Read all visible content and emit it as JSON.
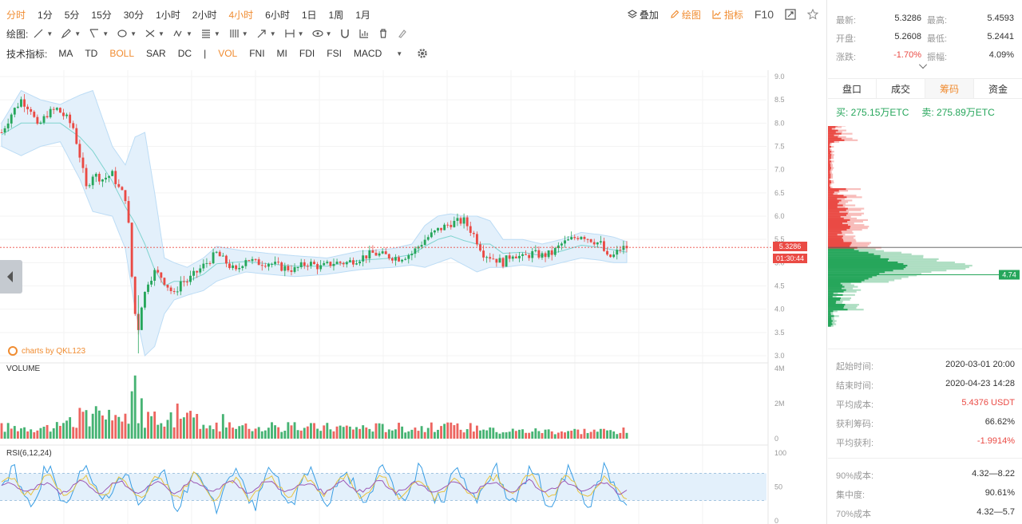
{
  "periods": [
    "分时",
    "1分",
    "5分",
    "15分",
    "30分",
    "1小时",
    "2小时",
    "4小时",
    "6小时",
    "1日",
    "1周",
    "1月"
  ],
  "active_periods": [
    "分时",
    "4小时"
  ],
  "right_tools": {
    "overlay": "叠加",
    "draw": "绘图",
    "indicators": "指标",
    "f10": "F10"
  },
  "draw_label": "绘图:",
  "indicator_label": "技术指标:",
  "indicators": [
    "MA",
    "TD",
    "BOLL",
    "SAR",
    "DC",
    "VOL",
    "FNI",
    "MI",
    "FDI",
    "FSI",
    "MACD"
  ],
  "active_indicators": [
    "BOLL",
    "VOL"
  ],
  "watermark": "charts by QKL123",
  "price_tag": "5.3286",
  "time_tag": "01:30:44",
  "volume_label": "VOLUME",
  "rsi_label": "RSI(6,12,24)",
  "chart_data": [
    {
      "type": "candlestick",
      "title": "",
      "ylim": [
        3.0,
        9.0
      ],
      "yticks": [
        "9.0",
        "8.5",
        "8.0",
        "7.5",
        "7.0",
        "6.5",
        "6.0",
        "5.5",
        "5.0",
        "4.5",
        "4.0",
        "3.5",
        "3.0"
      ],
      "current_price": 5.3286,
      "overlays": [
        "BOLL"
      ],
      "close_path": [
        [
          0,
          7.8
        ],
        [
          3,
          8.2
        ],
        [
          6,
          8.5
        ],
        [
          9,
          8.3
        ],
        [
          11,
          7.9
        ],
        [
          14,
          8.2
        ],
        [
          17,
          8.3
        ],
        [
          20,
          8.1
        ],
        [
          22,
          7.9
        ],
        [
          24,
          7.3
        ],
        [
          26,
          6.6
        ],
        [
          28,
          6.9
        ],
        [
          31,
          6.8
        ],
        [
          34,
          6.9
        ],
        [
          36,
          6.6
        ],
        [
          38,
          6.4
        ],
        [
          39,
          5.8
        ],
        [
          40,
          4.7
        ],
        [
          41,
          3.9
        ],
        [
          42,
          3.6
        ],
        [
          43,
          4.1
        ],
        [
          45,
          4.6
        ],
        [
          47,
          4.8
        ],
        [
          49,
          4.7
        ],
        [
          51,
          4.5
        ],
        [
          53,
          4.3
        ],
        [
          55,
          4.6
        ],
        [
          57,
          4.6
        ],
        [
          60,
          4.8
        ],
        [
          63,
          5.0
        ],
        [
          66,
          5.2
        ],
        [
          69,
          5.0
        ],
        [
          72,
          4.8
        ],
        [
          75,
          5.1
        ],
        [
          78,
          5.0
        ],
        [
          82,
          5.0
        ],
        [
          86,
          4.9
        ],
        [
          90,
          4.85
        ],
        [
          94,
          5.0
        ],
        [
          98,
          4.9
        ],
        [
          102,
          5.0
        ],
        [
          106,
          5.0
        ],
        [
          110,
          5.1
        ],
        [
          114,
          5.2
        ],
        [
          118,
          5.15
        ],
        [
          122,
          5.1
        ],
        [
          126,
          5.2
        ],
        [
          130,
          5.5
        ],
        [
          134,
          5.7
        ],
        [
          138,
          5.85
        ],
        [
          142,
          5.9
        ],
        [
          145,
          5.6
        ],
        [
          148,
          5.2
        ],
        [
          151,
          5.1
        ],
        [
          154,
          5.0
        ],
        [
          157,
          5.2
        ],
        [
          160,
          5.1
        ],
        [
          163,
          5.2
        ],
        [
          166,
          5.15
        ],
        [
          169,
          5.2
        ],
        [
          172,
          5.4
        ],
        [
          175,
          5.5
        ],
        [
          178,
          5.6
        ],
        [
          181,
          5.5
        ],
        [
          184,
          5.4
        ],
        [
          186,
          5.1
        ],
        [
          188,
          5.15
        ],
        [
          190,
          5.3
        ],
        [
          192,
          5.3286
        ]
      ],
      "boll_upper": [
        [
          0,
          8.0
        ],
        [
          6,
          8.7
        ],
        [
          12,
          8.5
        ],
        [
          18,
          8.4
        ],
        [
          24,
          8.6
        ],
        [
          28,
          8.7
        ],
        [
          34,
          7.5
        ],
        [
          38,
          7.1
        ],
        [
          41,
          7.7
        ],
        [
          44,
          7.8
        ],
        [
          47,
          6.5
        ],
        [
          50,
          5.1
        ],
        [
          53,
          5.0
        ],
        [
          57,
          4.9
        ],
        [
          62,
          5.1
        ],
        [
          66,
          5.35
        ],
        [
          70,
          5.3
        ],
        [
          75,
          5.25
        ],
        [
          82,
          5.2
        ],
        [
          90,
          5.15
        ],
        [
          100,
          5.1
        ],
        [
          110,
          5.25
        ],
        [
          120,
          5.3
        ],
        [
          126,
          5.4
        ],
        [
          130,
          5.8
        ],
        [
          134,
          6.0
        ],
        [
          138,
          6.05
        ],
        [
          142,
          6.0
        ],
        [
          146,
          6.0
        ],
        [
          150,
          5.9
        ],
        [
          154,
          5.5
        ],
        [
          160,
          5.5
        ],
        [
          166,
          5.4
        ],
        [
          172,
          5.5
        ],
        [
          178,
          5.65
        ],
        [
          184,
          5.6
        ],
        [
          188,
          5.55
        ],
        [
          192,
          5.45
        ]
      ],
      "boll_lower": [
        [
          0,
          7.5
        ],
        [
          6,
          7.3
        ],
        [
          12,
          7.5
        ],
        [
          18,
          7.6
        ],
        [
          24,
          6.8
        ],
        [
          28,
          6.1
        ],
        [
          34,
          6.0
        ],
        [
          38,
          5.3
        ],
        [
          41,
          4.0
        ],
        [
          44,
          3.0
        ],
        [
          47,
          3.2
        ],
        [
          50,
          3.9
        ],
        [
          53,
          4.2
        ],
        [
          57,
          4.3
        ],
        [
          62,
          4.4
        ],
        [
          66,
          4.6
        ],
        [
          70,
          4.7
        ],
        [
          75,
          4.8
        ],
        [
          82,
          4.75
        ],
        [
          90,
          4.7
        ],
        [
          100,
          4.75
        ],
        [
          110,
          4.85
        ],
        [
          120,
          4.9
        ],
        [
          126,
          4.95
        ],
        [
          130,
          4.9
        ],
        [
          134,
          5.0
        ],
        [
          138,
          5.1
        ],
        [
          142,
          4.95
        ],
        [
          146,
          4.8
        ],
        [
          150,
          4.9
        ],
        [
          154,
          4.9
        ],
        [
          160,
          4.95
        ],
        [
          166,
          4.9
        ],
        [
          172,
          5.0
        ],
        [
          178,
          5.1
        ],
        [
          184,
          5.05
        ],
        [
          188,
          5.0
        ],
        [
          192,
          5.0
        ]
      ]
    },
    {
      "type": "bar",
      "title": "VOLUME",
      "ylim": [
        0,
        4
      ],
      "yticks": [
        "4M",
        "2M",
        "0"
      ],
      "unit": "M"
    },
    {
      "type": "line",
      "title": "RSI(6,12,24)",
      "ylim": [
        0,
        100
      ],
      "yticks": [
        "100",
        "50",
        "0"
      ],
      "band": [
        30,
        70
      ],
      "series": [
        {
          "name": "RSI6",
          "color": "#3a9ee4"
        },
        {
          "name": "RSI12",
          "color": "#e8c341"
        },
        {
          "name": "RSI24",
          "color": "#9b59b6"
        }
      ]
    }
  ],
  "side": {
    "stats": [
      {
        "l1": "最新:",
        "v1": "5.3286",
        "l2": "最高:",
        "v2": "5.4593"
      },
      {
        "l1": "开盘:",
        "v1": "5.2608",
        "l2": "最低:",
        "v2": "5.2441"
      },
      {
        "l1": "涨跌:",
        "v1": "-1.70%",
        "l2": "振幅:",
        "v2": "4.09%"
      }
    ],
    "tabs": [
      "盘口",
      "成交",
      "筹码",
      "资金"
    ],
    "active_tab": "筹码",
    "buy": "买: 275.15万ETC",
    "sell": "卖: 275.89万ETC",
    "dist_marker": "4.74",
    "info": [
      {
        "label": "起始时间:",
        "value": "2020-03-01 20:00"
      },
      {
        "label": "结束时间:",
        "value": "2020-04-23 14:28"
      },
      {
        "label": "平均成本:",
        "value": "5.4376 USDT"
      },
      {
        "label": "获利筹码:",
        "value": "66.62%"
      },
      {
        "label": "平均获利:",
        "value": "-1.9914%"
      }
    ],
    "info2": [
      {
        "label": "90%成本:",
        "value": "4.32—8.22"
      },
      {
        "label": "集中度:",
        "value": "90.61%"
      },
      {
        "label": "70%成本",
        "value": "4.32—5.7"
      }
    ]
  },
  "colors": {
    "up": "#26a65b",
    "down": "#ea4a44",
    "accent": "#f08c31",
    "boll": "#bcdcf5"
  }
}
